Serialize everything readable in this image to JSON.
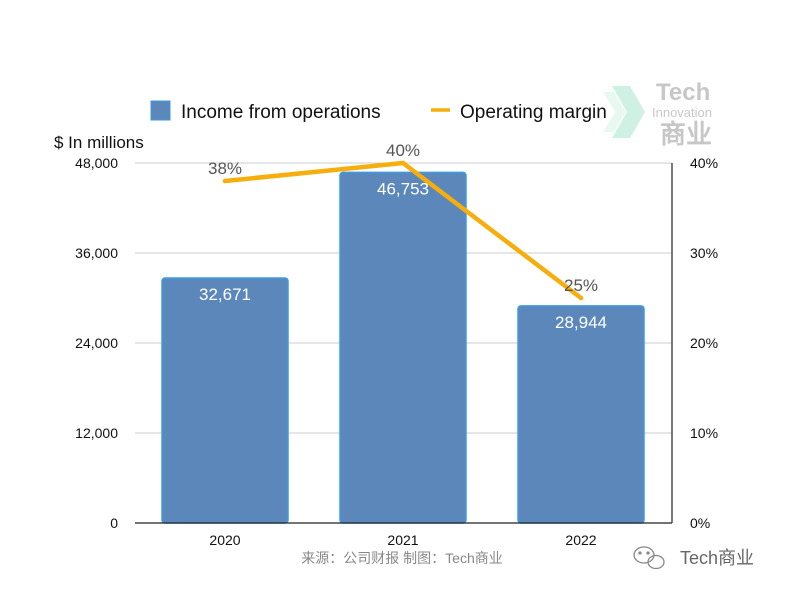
{
  "chart_data": {
    "type": "bar",
    "categories": [
      "2020",
      "2021",
      "2022"
    ],
    "series": [
      {
        "name": "Income from operations",
        "kind": "bar",
        "axis": "left",
        "values": [
          32671,
          46753,
          28944
        ],
        "labels": [
          "32,671",
          "46,753",
          "28,944"
        ]
      },
      {
        "name": "Operating margin",
        "kind": "line",
        "axis": "right",
        "values": [
          38,
          40,
          25
        ],
        "labels": [
          "38%",
          "40%",
          "25%"
        ]
      }
    ],
    "ylabel": "$ In millions",
    "ylim": [
      0,
      48000
    ],
    "yticks": [
      "0",
      "12,000",
      "24,000",
      "36,000",
      "48,000"
    ],
    "y2lim": [
      0,
      40
    ],
    "y2ticks": [
      "0%",
      "10%",
      "20%",
      "30%",
      "40%"
    ],
    "legend": "top",
    "source": "来源：公司财报 制图：Tech商业",
    "colors": {
      "bar_fill": "#5b87bb",
      "bar_stroke": "#3d9be0",
      "line": "#f6ae0c",
      "grid": "#cccccc",
      "axis": "#222222",
      "bar_label": "#ffffff",
      "line_label": "#555555"
    }
  },
  "watermark": {
    "logo_line1": "Tech",
    "logo_line2": "Innovation",
    "logo_line3": "商业",
    "footer_brand": "Tech商业"
  }
}
